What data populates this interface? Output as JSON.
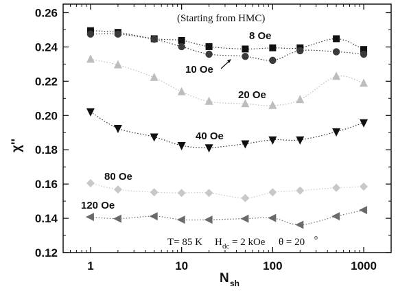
{
  "chart_data": {
    "type": "scatter",
    "x_scale": "log",
    "xlim": [
      0.5,
      2000
    ],
    "ylim": [
      0.12,
      0.265
    ],
    "x_ticks": [
      1,
      10,
      100,
      1000
    ],
    "x_tick_labels": [
      "1",
      "10",
      "100",
      "1000"
    ],
    "y_ticks": [
      0.12,
      0.14,
      0.16,
      0.18,
      0.2,
      0.22,
      0.24,
      0.26
    ],
    "y_tick_labels": [
      "0.12",
      "0.14",
      "0.16",
      "0.18",
      "0.20",
      "0.22",
      "0.24",
      "0.26"
    ],
    "xlabel_main": "N",
    "xlabel_sub": "sh",
    "ylabel": "χ''",
    "grid": false,
    "annotation": "(Starting from HMC)",
    "conditions": {
      "t": "T= 85 K",
      "h_main": "H",
      "h_sub": "dc",
      "h_value": "= 2 kOe",
      "theta": "θ = 20",
      "theta_sup": "o"
    },
    "series": [
      {
        "name": "8 Oe",
        "marker": "square",
        "color": "#111111",
        "x": [
          1,
          2,
          5,
          10,
          20,
          50,
          100,
          200,
          500,
          1000
        ],
        "y": [
          0.2495,
          0.2485,
          0.2448,
          0.2438,
          0.2402,
          0.2388,
          0.2395,
          0.2395,
          0.2448,
          0.2385
        ]
      },
      {
        "name": "10 Oe",
        "marker": "circle",
        "color": "#3a3a3a",
        "x": [
          1,
          2,
          5,
          10,
          20,
          50,
          100,
          200,
          500,
          1000
        ],
        "y": [
          0.2475,
          0.2475,
          0.2445,
          0.2402,
          0.2358,
          0.2345,
          0.2322,
          0.2378,
          0.2372,
          0.2358
        ]
      },
      {
        "name": "20 Oe",
        "marker": "triangle-up",
        "color": "#bdbdbd",
        "x": [
          1,
          2,
          5,
          10,
          20,
          50,
          100,
          200,
          500,
          1000
        ],
        "y": [
          0.2328,
          0.2295,
          0.2222,
          0.2138,
          0.2082,
          0.2068,
          0.2058,
          0.2092,
          0.2228,
          0.2188
        ]
      },
      {
        "name": "40 Oe",
        "marker": "triangle-down",
        "color": "#111111",
        "x": [
          1,
          2,
          5,
          10,
          20,
          50,
          100,
          200,
          500,
          1000
        ],
        "y": [
          0.2022,
          0.1925,
          0.1875,
          0.1825,
          0.1812,
          0.1835,
          0.1858,
          0.1858,
          0.1905,
          0.1958
        ]
      },
      {
        "name": "80 Oe",
        "marker": "diamond",
        "color": "#c8c8c8",
        "x": [
          1,
          2,
          5,
          10,
          20,
          50,
          100,
          200,
          500,
          1000
        ],
        "y": [
          0.1605,
          0.1568,
          0.1552,
          0.1548,
          0.1548,
          0.1518,
          0.1552,
          0.1562,
          0.1578,
          0.1585
        ]
      },
      {
        "name": "120 Oe",
        "marker": "triangle-left",
        "color": "#6a6a6a",
        "x": [
          1,
          2,
          5,
          10,
          20,
          50,
          100,
          200,
          500,
          1000
        ],
        "y": [
          0.1408,
          0.1398,
          0.1412,
          0.1392,
          0.1392,
          0.1398,
          0.1402,
          0.1362,
          0.1412,
          0.1448
        ]
      }
    ]
  }
}
